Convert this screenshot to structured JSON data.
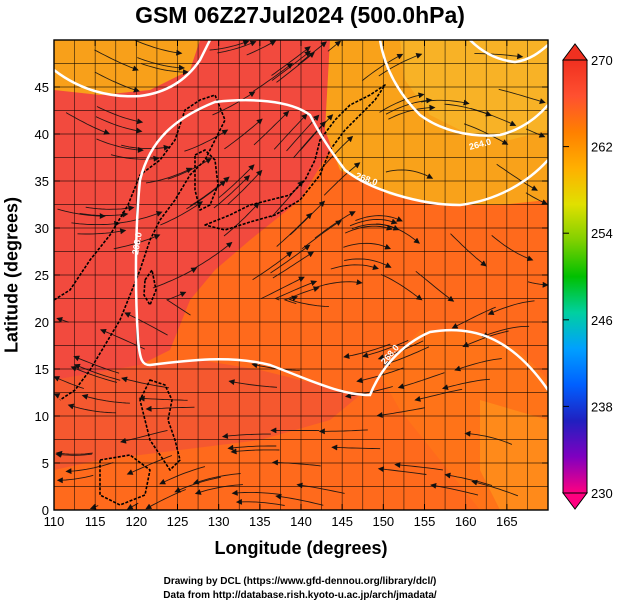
{
  "title": "GSM 06Z27Jul2024 (500.0hPa)",
  "chart_data": {
    "type": "map",
    "xlabel": "Longitude (degrees)",
    "ylabel": "Latitude  (degrees)",
    "xlim": [
      110,
      170
    ],
    "ylim": [
      0,
      50
    ],
    "x_ticks": [
      "110",
      "115",
      "120",
      "125",
      "130",
      "135",
      "140",
      "145",
      "150",
      "155",
      "160",
      "165"
    ],
    "y_ticks": [
      "0",
      "5",
      "10",
      "15",
      "20",
      "25",
      "30",
      "35",
      "40",
      "45"
    ],
    "colorbar": {
      "range": [
        230,
        270
      ],
      "labels": [
        "270",
        "262",
        "254",
        "246",
        "238",
        "230"
      ],
      "colors": [
        "#ff0080",
        "#8000c0",
        "#2020c0",
        "#0060ff",
        "#00a0ff",
        "#00d0a0",
        "#00c000",
        "#80d000",
        "#e0e000",
        "#ffb000",
        "#ff8000",
        "#ff5030",
        "#f03020"
      ]
    },
    "contours": [
      {
        "label": "264.0",
        "color": "#ffffff"
      },
      {
        "label": "268.0",
        "color": "#ffffff"
      },
      {
        "label": "268.0",
        "color": "#ffffff"
      },
      {
        "label": "268.0",
        "color": "#ffffff"
      }
    ]
  },
  "credits": {
    "line1": "Drawing by DCL (https://www.gfd-dennou.org/library/dcl/)",
    "line2": "Data from http://database.rish.kyoto-u.ac.jp/arch/jmadata/"
  }
}
